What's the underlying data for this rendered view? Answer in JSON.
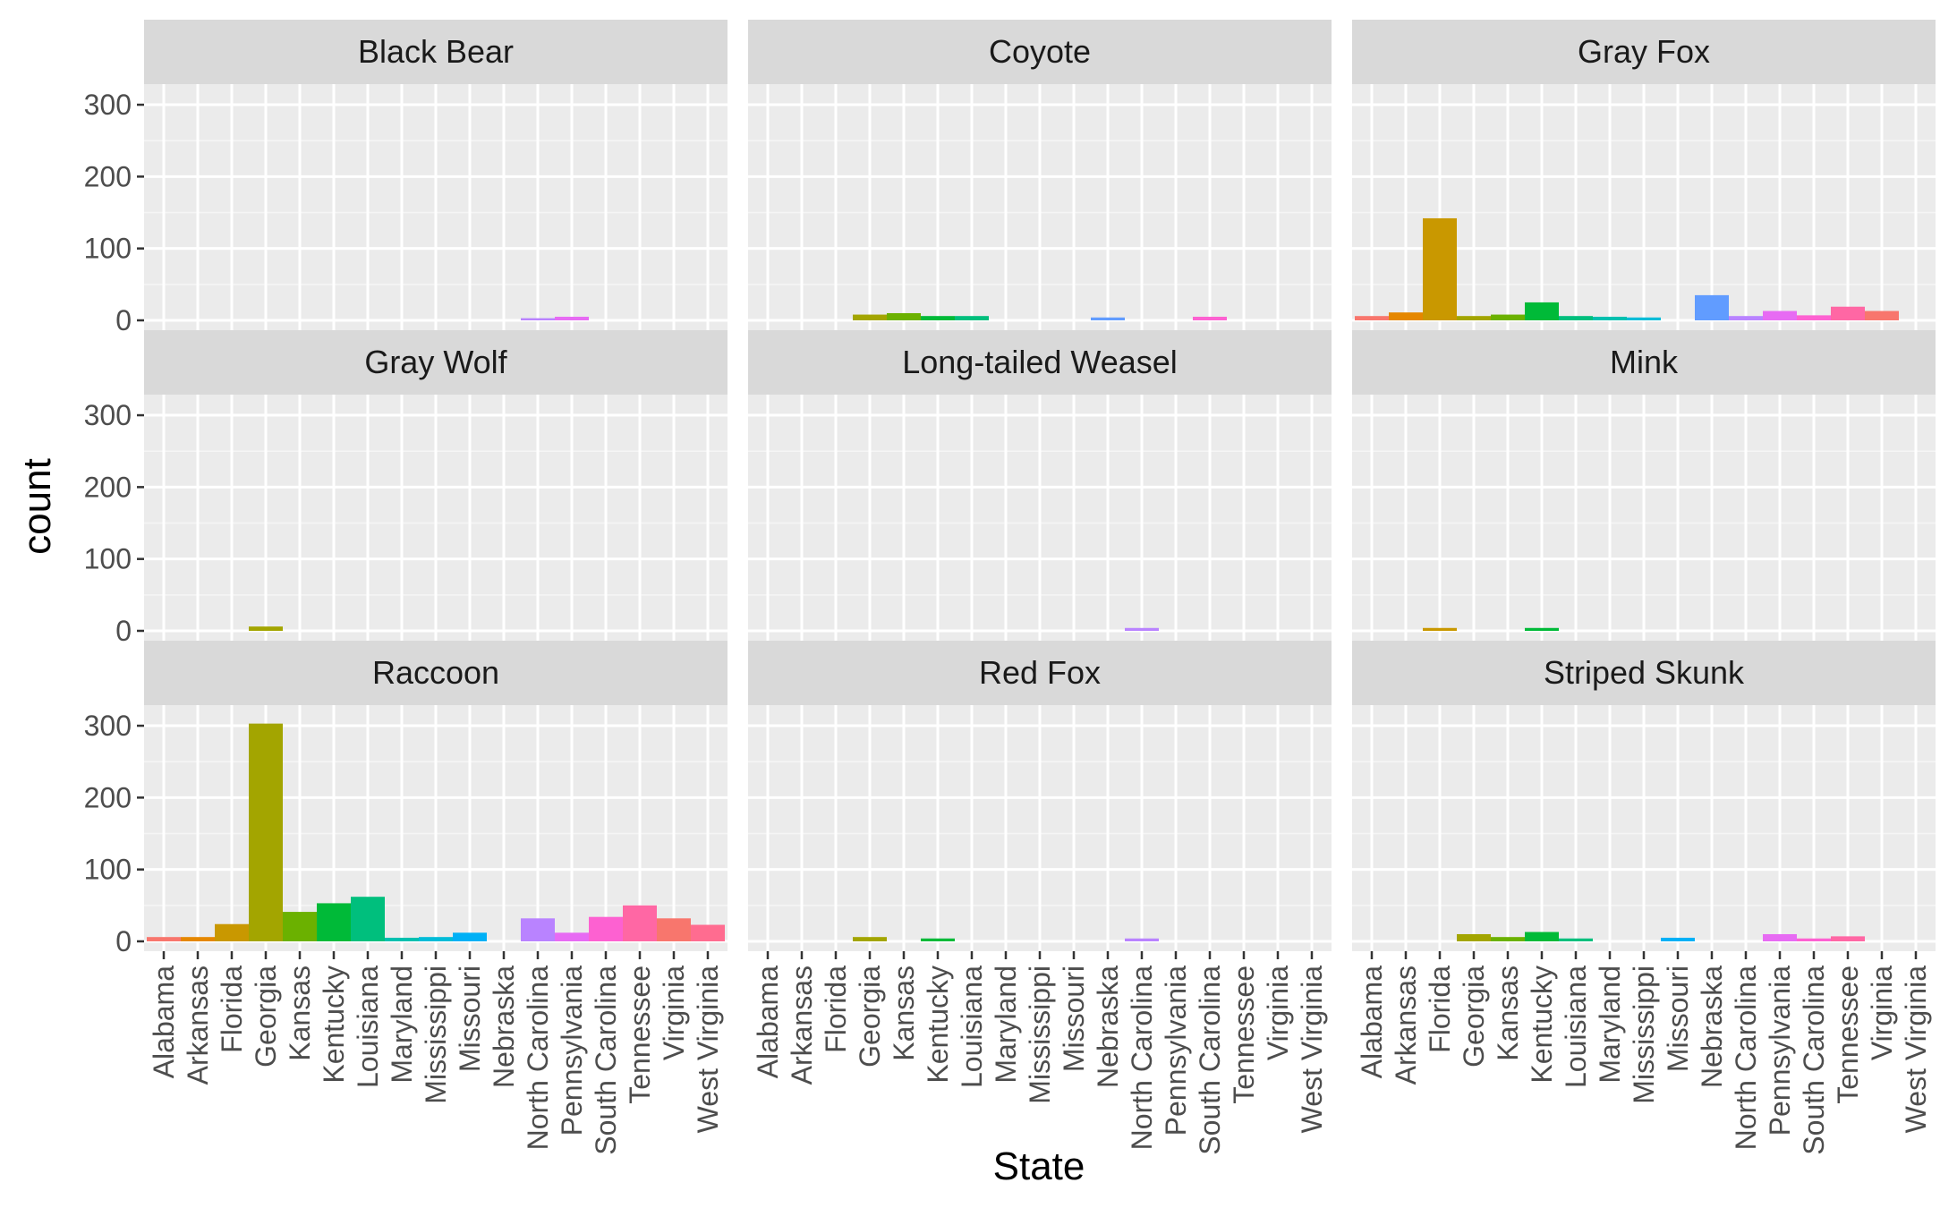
{
  "chart_data": {
    "type": "bar",
    "xlabel": "State",
    "ylabel": "count",
    "ylim": [
      0,
      315
    ],
    "yticks": [
      0,
      100,
      200,
      300
    ],
    "grid": true,
    "legend": "none",
    "categories": [
      "Alabama",
      "Arkansas",
      "Florida",
      "Georgia",
      "Kansas",
      "Kentucky",
      "Louisiana",
      "Maryland",
      "Mississippi",
      "Missouri",
      "Nebraska",
      "North Carolina",
      "Pennsylvania",
      "South Carolina",
      "Tennessee",
      "Virginia",
      "West Virginia"
    ],
    "category_colors": [
      "#F8766D",
      "#E58700",
      "#C99800",
      "#A3A500",
      "#6BB100",
      "#00BA38",
      "#00BF7D",
      "#00C0AF",
      "#00BCD8",
      "#00B0F6",
      "#619CFF",
      "#B983FF",
      "#E76BF3",
      "#FD61D1",
      "#FF67A4",
      "#F8766D",
      "#FF6C90"
    ],
    "facets": [
      {
        "title": "Black Bear",
        "values": [
          0,
          0,
          0,
          0,
          0,
          0,
          0,
          0,
          0,
          0,
          0,
          3,
          5,
          0,
          0,
          0,
          0
        ]
      },
      {
        "title": "Coyote",
        "values": [
          0,
          0,
          0,
          8,
          10,
          6,
          6,
          0,
          0,
          0,
          4,
          0,
          0,
          5,
          0,
          0,
          0
        ]
      },
      {
        "title": "Gray Fox",
        "values": [
          6,
          11,
          142,
          6,
          8,
          25,
          6,
          5,
          4,
          0,
          35,
          6,
          13,
          7,
          19,
          13,
          0
        ]
      },
      {
        "title": "Gray Wolf",
        "values": [
          0,
          0,
          0,
          6,
          0,
          0,
          0,
          0,
          0,
          0,
          0,
          0,
          0,
          0,
          0,
          0,
          0
        ]
      },
      {
        "title": "Long-tailed Weasel",
        "values": [
          0,
          0,
          0,
          0,
          0,
          0,
          0,
          0,
          0,
          0,
          0,
          4,
          0,
          0,
          0,
          0,
          0
        ]
      },
      {
        "title": "Mink",
        "values": [
          0,
          0,
          4,
          0,
          0,
          4,
          0,
          0,
          0,
          0,
          0,
          0,
          0,
          0,
          0,
          0,
          0
        ]
      },
      {
        "title": "Raccoon",
        "values": [
          6,
          6,
          24,
          303,
          41,
          53,
          62,
          5,
          6,
          12,
          0,
          32,
          12,
          34,
          50,
          32,
          23
        ]
      },
      {
        "title": "Red Fox",
        "values": [
          0,
          0,
          0,
          6,
          0,
          4,
          0,
          0,
          0,
          0,
          0,
          4,
          0,
          0,
          0,
          0,
          0
        ]
      },
      {
        "title": "Striped Skunk",
        "values": [
          0,
          0,
          0,
          10,
          6,
          13,
          4,
          0,
          0,
          5,
          0,
          0,
          10,
          4,
          7,
          0,
          0
        ]
      }
    ]
  }
}
